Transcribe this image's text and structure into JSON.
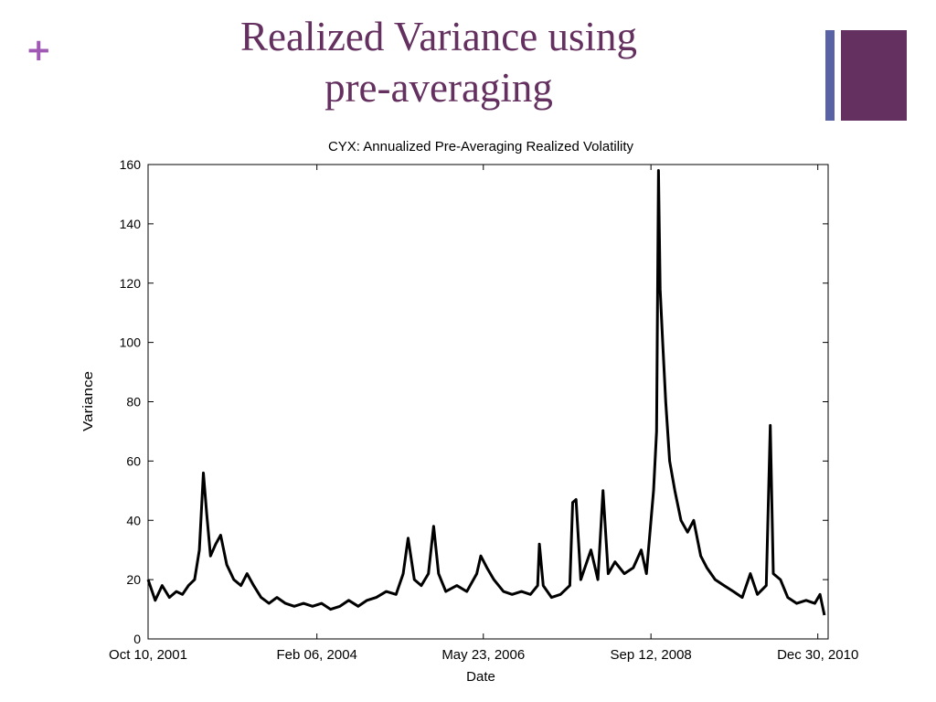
{
  "slide": {
    "title_line1": "Realized Variance using",
    "title_line2": "pre-averaging",
    "bullet_symbol": "+",
    "colors": {
      "title": "#64305f",
      "plus": "#a157b4",
      "accent_thin": "#5862a5",
      "accent_thick": "#63305f"
    }
  },
  "chart_data": {
    "type": "line",
    "title": "CYX: Annualized Pre-Averaging Realized Volatility",
    "xlabel": "Date",
    "ylabel": "Variance",
    "ylim": [
      0,
      160
    ],
    "yticks": [
      0,
      20,
      40,
      60,
      80,
      100,
      120,
      140,
      160
    ],
    "xlim": [
      "2001-10-10",
      "2011-02-20"
    ],
    "xticks": [
      {
        "date": "2001-10-10",
        "label": "Oct 10, 2001"
      },
      {
        "date": "2004-02-06",
        "label": "Feb 06, 2004"
      },
      {
        "date": "2006-05-23",
        "label": "May 23, 2006"
      },
      {
        "date": "2008-09-12",
        "label": "Sep 12, 2008"
      },
      {
        "date": "2010-12-30",
        "label": "Dec 30, 2010"
      }
    ],
    "grid": false,
    "line_color": "#000000",
    "series": [
      {
        "points": [
          [
            "2001-10-10",
            20
          ],
          [
            "2001-11-15",
            13
          ],
          [
            "2001-12-20",
            18
          ],
          [
            "2002-01-25",
            14
          ],
          [
            "2002-03-01",
            16
          ],
          [
            "2002-04-01",
            15
          ],
          [
            "2002-05-01",
            18
          ],
          [
            "2002-06-01",
            20
          ],
          [
            "2002-06-25",
            30
          ],
          [
            "2002-07-15",
            56
          ],
          [
            "2002-08-01",
            42
          ],
          [
            "2002-08-20",
            28
          ],
          [
            "2002-09-15",
            32
          ],
          [
            "2002-10-10",
            35
          ],
          [
            "2002-11-10",
            25
          ],
          [
            "2002-12-15",
            20
          ],
          [
            "2003-01-20",
            18
          ],
          [
            "2003-02-20",
            22
          ],
          [
            "2003-03-25",
            18
          ],
          [
            "2003-05-01",
            14
          ],
          [
            "2003-06-10",
            12
          ],
          [
            "2003-07-20",
            14
          ],
          [
            "2003-09-01",
            12
          ],
          [
            "2003-10-15",
            11
          ],
          [
            "2003-12-01",
            12
          ],
          [
            "2004-01-15",
            11
          ],
          [
            "2004-03-01",
            12
          ],
          [
            "2004-04-15",
            10
          ],
          [
            "2004-06-01",
            11
          ],
          [
            "2004-07-15",
            13
          ],
          [
            "2004-09-01",
            11
          ],
          [
            "2004-10-15",
            13
          ],
          [
            "2004-12-01",
            14
          ],
          [
            "2005-01-20",
            16
          ],
          [
            "2005-03-10",
            15
          ],
          [
            "2005-04-15",
            22
          ],
          [
            "2005-05-10",
            34
          ],
          [
            "2005-06-10",
            20
          ],
          [
            "2005-07-15",
            18
          ],
          [
            "2005-08-20",
            22
          ],
          [
            "2005-09-15",
            38
          ],
          [
            "2005-10-10",
            22
          ],
          [
            "2005-11-15",
            16
          ],
          [
            "2006-01-10",
            18
          ],
          [
            "2006-03-01",
            16
          ],
          [
            "2006-04-20",
            22
          ],
          [
            "2006-05-10",
            28
          ],
          [
            "2006-06-10",
            24
          ],
          [
            "2006-07-15",
            20
          ],
          [
            "2006-09-01",
            16
          ],
          [
            "2006-10-15",
            15
          ],
          [
            "2006-12-01",
            16
          ],
          [
            "2007-01-15",
            15
          ],
          [
            "2007-02-20",
            18
          ],
          [
            "2007-03-01",
            32
          ],
          [
            "2007-03-20",
            18
          ],
          [
            "2007-05-01",
            14
          ],
          [
            "2007-06-15",
            15
          ],
          [
            "2007-08-01",
            18
          ],
          [
            "2007-08-15",
            46
          ],
          [
            "2007-09-01",
            47
          ],
          [
            "2007-09-25",
            20
          ],
          [
            "2007-11-15",
            30
          ],
          [
            "2007-12-20",
            20
          ],
          [
            "2008-01-15",
            50
          ],
          [
            "2008-02-10",
            22
          ],
          [
            "2008-03-15",
            26
          ],
          [
            "2008-05-01",
            22
          ],
          [
            "2008-06-15",
            24
          ],
          [
            "2008-07-25",
            30
          ],
          [
            "2008-08-20",
            22
          ],
          [
            "2008-09-25",
            50
          ],
          [
            "2008-10-10",
            70
          ],
          [
            "2008-10-20",
            158
          ],
          [
            "2008-10-28",
            118
          ],
          [
            "2008-11-10",
            100
          ],
          [
            "2008-11-25",
            80
          ],
          [
            "2008-12-15",
            60
          ],
          [
            "2009-01-10",
            50
          ],
          [
            "2009-02-10",
            40
          ],
          [
            "2009-03-15",
            36
          ],
          [
            "2009-04-15",
            40
          ],
          [
            "2009-05-20",
            28
          ],
          [
            "2009-06-20",
            24
          ],
          [
            "2009-08-01",
            20
          ],
          [
            "2009-09-15",
            18
          ],
          [
            "2009-11-01",
            16
          ],
          [
            "2009-12-15",
            14
          ],
          [
            "2010-01-25",
            22
          ],
          [
            "2010-03-01",
            15
          ],
          [
            "2010-04-15",
            18
          ],
          [
            "2010-05-05",
            72
          ],
          [
            "2010-05-20",
            22
          ],
          [
            "2010-06-25",
            20
          ],
          [
            "2010-08-01",
            14
          ],
          [
            "2010-09-15",
            12
          ],
          [
            "2010-11-01",
            13
          ],
          [
            "2010-12-15",
            12
          ],
          [
            "2011-01-10",
            15
          ],
          [
            "2011-02-01",
            8
          ]
        ]
      }
    ]
  }
}
